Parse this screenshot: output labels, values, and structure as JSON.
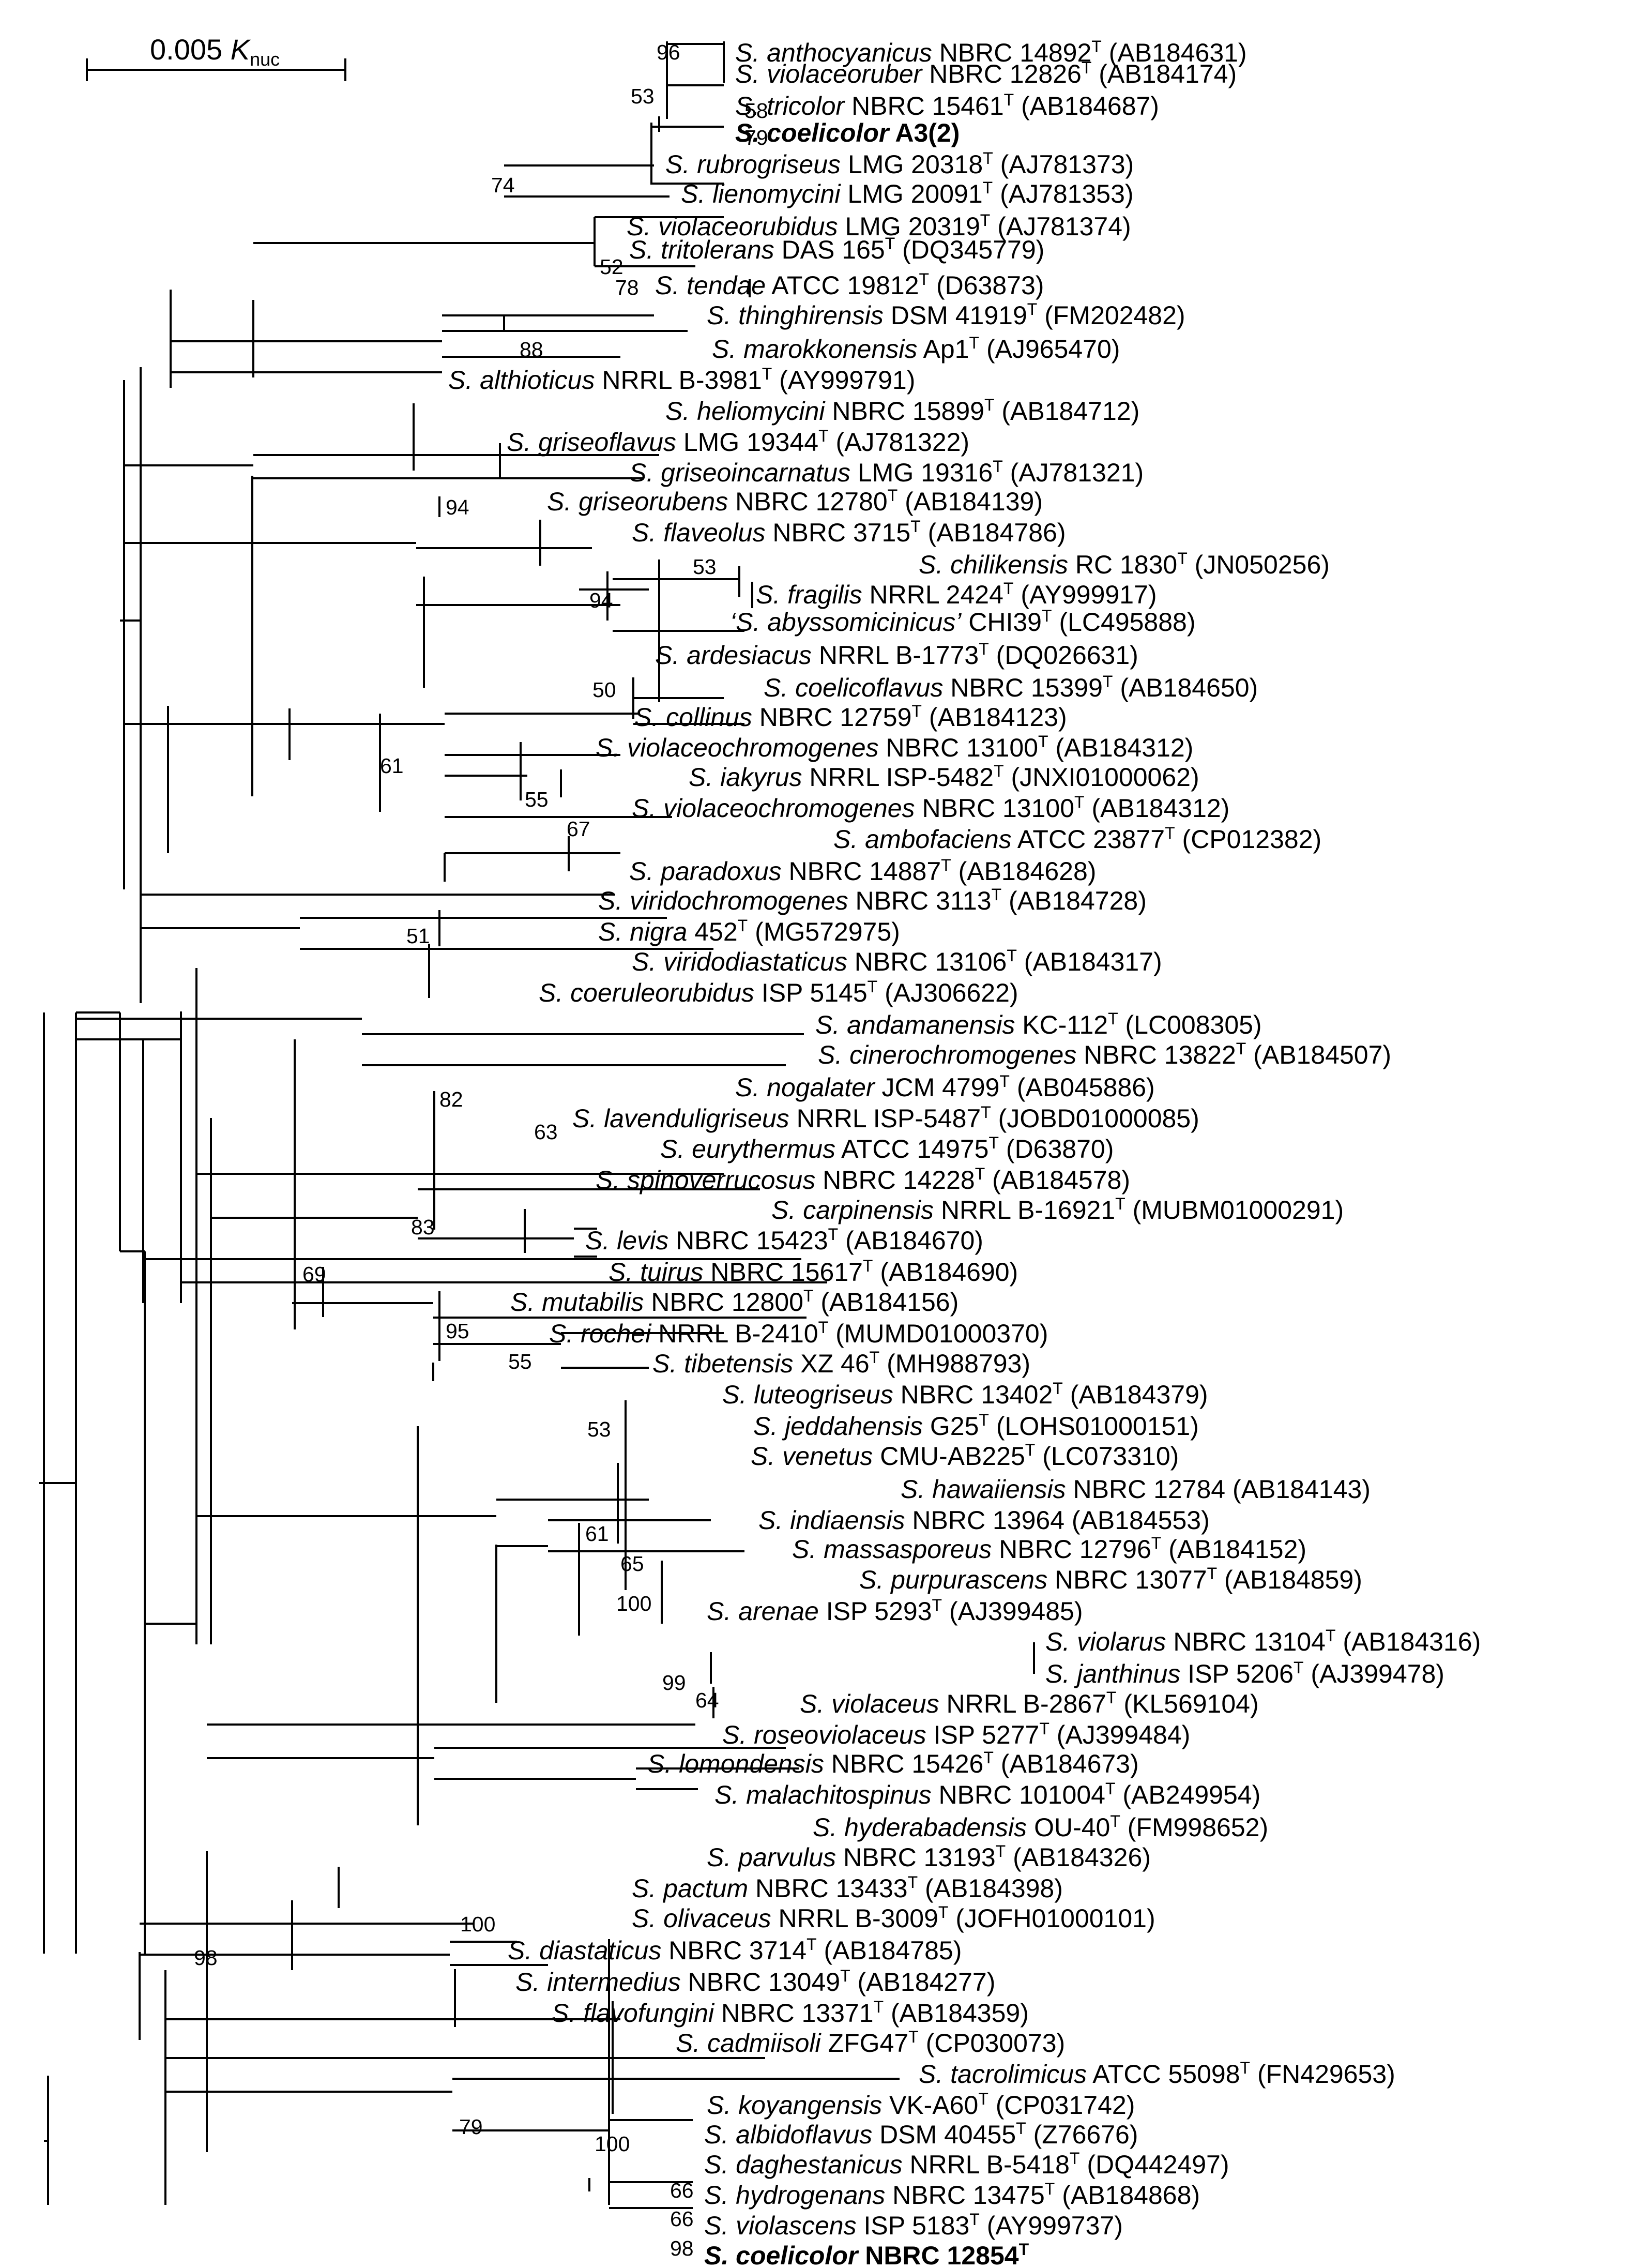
{
  "figure": {
    "type": "phylogenetic_tree",
    "scale_bar": {
      "value": "0.005",
      "symbol": "K",
      "subscript": "nuc"
    }
  },
  "taxa": [
    {
      "genus": "S.",
      "species": "anthocyanicus",
      "strain": "NBRC 14892",
      "type_strain": true,
      "accession": "(AB184631)"
    },
    {
      "genus": "S.",
      "species": "violaceoruber",
      "strain": "NBRC 12826",
      "type_strain": true,
      "accession": "(AB184174)"
    },
    {
      "genus": "S.",
      "species": "tricolor",
      "strain": "NBRC 15461",
      "type_strain": true,
      "accession": "(AB184687)"
    },
    {
      "genus": "S.",
      "species": "coelicolor",
      "strain": "A3(2)",
      "type_strain": false,
      "accession": "",
      "bold": true
    },
    {
      "genus": "S.",
      "species": "rubrogriseus",
      "strain": "LMG 20318",
      "type_strain": true,
      "accession": "(AJ781373)"
    },
    {
      "genus": "S.",
      "species": "lienomycini",
      "strain": "LMG 20091",
      "type_strain": true,
      "accession": "(AJ781353)"
    },
    {
      "genus": "S.",
      "species": "violaceorubidus",
      "strain": "LMG 20319",
      "type_strain": true,
      "accession": "(AJ781374)"
    },
    {
      "genus": "S.",
      "species": "tritolerans",
      "strain": "DAS 165",
      "type_strain": true,
      "accession": "(DQ345779)"
    },
    {
      "genus": "S.",
      "species": "tendae",
      "strain": "ATCC 19812",
      "type_strain": true,
      "accession": "(D63873)"
    },
    {
      "genus": "S.",
      "species": "thinghirensis",
      "strain": "DSM 41919",
      "type_strain": true,
      "accession": "(FM202482)"
    },
    {
      "genus": "S.",
      "species": "marokkonensis",
      "strain": "Ap1",
      "type_strain": true,
      "accession": "(AJ965470)"
    },
    {
      "genus": "S.",
      "species": "althioticus",
      "strain": "NRRL B-3981",
      "type_strain": true,
      "accession": "(AY999791)"
    },
    {
      "genus": "S.",
      "species": "heliomycini",
      "strain": "NBRC 15899",
      "type_strain": true,
      "accession": "(AB184712)"
    },
    {
      "genus": "S.",
      "species": "griseoflavus",
      "strain": "LMG 19344",
      "type_strain": true,
      "accession": "(AJ781322)"
    },
    {
      "genus": "S.",
      "species": "griseoincarnatus",
      "strain": "LMG 19316",
      "type_strain": true,
      "accession": "(AJ781321)"
    },
    {
      "genus": "S.",
      "species": "griseorubens",
      "strain": "NBRC 12780",
      "type_strain": true,
      "accession": "(AB184139)"
    },
    {
      "genus": "S.",
      "species": "flaveolus",
      "strain": "NBRC 3715",
      "type_strain": true,
      "accession": "(AB184786)"
    },
    {
      "genus": "S.",
      "species": "chilikensis",
      "strain": "RC 1830",
      "type_strain": true,
      "accession": "(JN050256)"
    },
    {
      "genus": "S.",
      "species": "fragilis",
      "strain": "NRRL 2424",
      "type_strain": true,
      "accession": "(AY999917)"
    },
    {
      "genus": "‘S.",
      "species": "abyssomicinicus’",
      "strain": "CHI39",
      "type_strain": true,
      "accession": "(LC495888)"
    },
    {
      "genus": "S.",
      "species": "ardesiacus",
      "strain": "NRRL B-1773",
      "type_strain": true,
      "accession": "(DQ026631)"
    },
    {
      "genus": "S.",
      "species": "coelicoflavus",
      "strain": "NBRC 15399",
      "type_strain": true,
      "accession": "(AB184650)"
    },
    {
      "genus": "S.",
      "species": "collinus",
      "strain": "NBRC 12759",
      "type_strain": true,
      "accession": "(AB184123)"
    },
    {
      "genus": "S.",
      "species": "violaceochromogenes",
      "strain": "NBRC 13100",
      "type_strain": true,
      "accession": "(AB184312)"
    },
    {
      "genus": "S.",
      "species": "iakyrus",
      "strain": "NRRL ISP-5482",
      "type_strain": true,
      "accession": "(JNXI01000062)"
    },
    {
      "genus": "S.",
      "species": "violaceochromogenes",
      "strain": "NBRC 13100",
      "type_strain": true,
      "accession": "(AB184312)"
    },
    {
      "genus": "S.",
      "species": "ambofaciens",
      "strain": "ATCC 23877",
      "type_strain": true,
      "accession": "(CP012382)"
    },
    {
      "genus": "S.",
      "species": "paradoxus",
      "strain": "NBRC 14887",
      "type_strain": true,
      "accession": "(AB184628)"
    },
    {
      "genus": "S.",
      "species": "viridochromogenes",
      "strain": "NBRC 3113",
      "type_strain": true,
      "accession": "(AB184728)"
    },
    {
      "genus": "S.",
      "species": "nigra",
      "strain": "452",
      "type_strain": true,
      "accession": "(MG572975)"
    },
    {
      "genus": "S.",
      "species": "viridodiastaticus",
      "strain": "NBRC 13106",
      "type_strain": true,
      "accession": "(AB184317)"
    },
    {
      "genus": "S.",
      "species": "coeruleorubidus",
      "strain": "ISP 5145",
      "type_strain": true,
      "accession": "(AJ306622)"
    },
    {
      "genus": "S.",
      "species": "andamanensis",
      "strain": "KC-112",
      "type_strain": true,
      "accession": "(LC008305)"
    },
    {
      "genus": "S.",
      "species": "cinerochromogenes",
      "strain": "NBRC 13822",
      "type_strain": true,
      "accession": "(AB184507)"
    },
    {
      "genus": "S.",
      "species": "nogalater",
      "strain": "JCM 4799",
      "type_strain": true,
      "accession": "(AB045886)"
    },
    {
      "genus": "S.",
      "species": "lavenduligriseus",
      "strain": "NRRL ISP-5487",
      "type_strain": true,
      "accession": "(JOBD01000085)"
    },
    {
      "genus": "S.",
      "species": "eurythermus",
      "strain": "ATCC 14975",
      "type_strain": true,
      "accession": "(D63870)"
    },
    {
      "genus": "S.",
      "species": "spinoverrucosus",
      "strain": "NBRC 14228",
      "type_strain": true,
      "accession": "(AB184578)"
    },
    {
      "genus": "S.",
      "species": "carpinensis",
      "strain": "NRRL B-16921",
      "type_strain": true,
      "accession": "(MUBM01000291)"
    },
    {
      "genus": "S.",
      "species": "levis",
      "strain": "NBRC 15423",
      "type_strain": true,
      "accession": "(AB184670)"
    },
    {
      "genus": "S.",
      "species": "tuirus",
      "strain": "NBRC 15617",
      "type_strain": true,
      "accession": "(AB184690)"
    },
    {
      "genus": "S.",
      "species": "mutabilis",
      "strain": "NBRC 12800",
      "type_strain": true,
      "accession": "(AB184156)"
    },
    {
      "genus": "S.",
      "species": "rochei",
      "strain": "NRRL B-2410",
      "type_strain": true,
      "accession": "(MUMD01000370)"
    },
    {
      "genus": "S.",
      "species": "tibetensis",
      "strain": "XZ 46",
      "type_strain": true,
      "accession": "(MH988793)"
    },
    {
      "genus": "S.",
      "species": "luteogriseus",
      "strain": "NBRC 13402",
      "type_strain": true,
      "accession": "(AB184379)"
    },
    {
      "genus": "S.",
      "species": "jeddahensis",
      "strain": "G25",
      "type_strain": true,
      "accession": "(LOHS01000151)"
    },
    {
      "genus": "S.",
      "species": "venetus",
      "strain": "CMU-AB225",
      "type_strain": true,
      "accession": "(LC073310)"
    },
    {
      "genus": "S.",
      "species": "hawaiiensis",
      "strain": "NBRC 12784",
      "type_strain": false,
      "accession": "(AB184143)"
    },
    {
      "genus": "S.",
      "species": "indiaensis",
      "strain": "NBRC 13964",
      "type_strain": false,
      "accession": "(AB184553)"
    },
    {
      "genus": "S.",
      "species": "massasporeus",
      "strain": "NBRC 12796",
      "type_strain": true,
      "accession": "(AB184152)"
    },
    {
      "genus": "S.",
      "species": "purpurascens",
      "strain": "NBRC 13077",
      "type_strain": true,
      "accession": "(AB184859)"
    },
    {
      "genus": "S.",
      "species": "arenae",
      "strain": "ISP 5293",
      "type_strain": true,
      "accession": "(AJ399485)"
    },
    {
      "genus": "S.",
      "species": "violarus",
      "strain": "NBRC 13104",
      "type_strain": true,
      "accession": "(AB184316)"
    },
    {
      "genus": "S.",
      "species": "janthinus",
      "strain": "ISP 5206",
      "type_strain": true,
      "accession": "(AJ399478)"
    },
    {
      "genus": "S.",
      "species": "violaceus",
      "strain": "NRRL B-2867",
      "type_strain": true,
      "accession": "(KL569104)"
    },
    {
      "genus": "S.",
      "species": "roseoviolaceus",
      "strain": "ISP 5277",
      "type_strain": true,
      "accession": "(AJ399484)"
    },
    {
      "genus": "S.",
      "species": "lomondensis",
      "strain": "NBRC 15426",
      "type_strain": true,
      "accession": "(AB184673)"
    },
    {
      "genus": "S.",
      "species": "malachitospinus",
      "strain": "NBRC 101004",
      "type_strain": true,
      "accession": "(AB249954)"
    },
    {
      "genus": "S.",
      "species": "hyderabadensis",
      "strain": "OU-40",
      "type_strain": true,
      "accession": "(FM998652)"
    },
    {
      "genus": "S.",
      "species": "parvulus",
      "strain": "NBRC 13193",
      "type_strain": true,
      "accession": "(AB184326)"
    },
    {
      "genus": "S.",
      "species": "pactum",
      "strain": "NBRC 13433",
      "type_strain": true,
      "accession": "(AB184398)"
    },
    {
      "genus": "S.",
      "species": "olivaceus",
      "strain": "NRRL B-3009",
      "type_strain": true,
      "accession": "(JOFH01000101)"
    },
    {
      "genus": "S.",
      "species": "diastaticus",
      "strain": "NBRC 3714",
      "type_strain": true,
      "accession": "(AB184785)"
    },
    {
      "genus": "S.",
      "species": "intermedius",
      "strain": "NBRC 13049",
      "type_strain": true,
      "accession": "(AB184277)"
    },
    {
      "genus": "S.",
      "species": "flavofungini",
      "strain": "NBRC 13371",
      "type_strain": true,
      "accession": "(AB184359)"
    },
    {
      "genus": "S.",
      "species": "cadmiisoli",
      "strain": "ZFG47",
      "type_strain": true,
      "accession": "(CP030073)"
    },
    {
      "genus": "S.",
      "species": "tacrolimicus",
      "strain": "ATCC 55098",
      "type_strain": true,
      "accession": "(FN429653)"
    },
    {
      "genus": "S.",
      "species": "koyangensis",
      "strain": "VK-A60",
      "type_strain": true,
      "accession": "(CP031742)"
    },
    {
      "genus": "S.",
      "species": "albidoflavus",
      "strain": "DSM 40455",
      "type_strain": true,
      "accession": "(Z76676)"
    },
    {
      "genus": "S.",
      "species": "daghestanicus",
      "strain": "NRRL B-5418",
      "type_strain": true,
      "accession": "(DQ442497)"
    },
    {
      "genus": "S.",
      "species": "hydrogenans",
      "strain": "NBRC 13475",
      "type_strain": true,
      "accession": "(AB184868)"
    },
    {
      "genus": "S.",
      "species": "violascens",
      "strain": "ISP 5183",
      "type_strain": true,
      "accession": "(AY999737)"
    },
    {
      "genus": "S.",
      "species": "coelicolor",
      "strain": "NBRC 12854",
      "type_strain": true,
      "accession": "",
      "bold": true
    }
  ],
  "bootstrap": [
    "96",
    "53",
    "58",
    "79",
    "74",
    "52",
    "78",
    "88",
    "94",
    "53",
    "94",
    "50",
    "61",
    "55",
    "67",
    "51",
    "82",
    "63",
    "83",
    "69",
    "95",
    "55",
    "53",
    "61",
    "65",
    "100",
    "99",
    "64",
    "100",
    "98",
    "79",
    "100",
    "66",
    "66",
    "98"
  ]
}
